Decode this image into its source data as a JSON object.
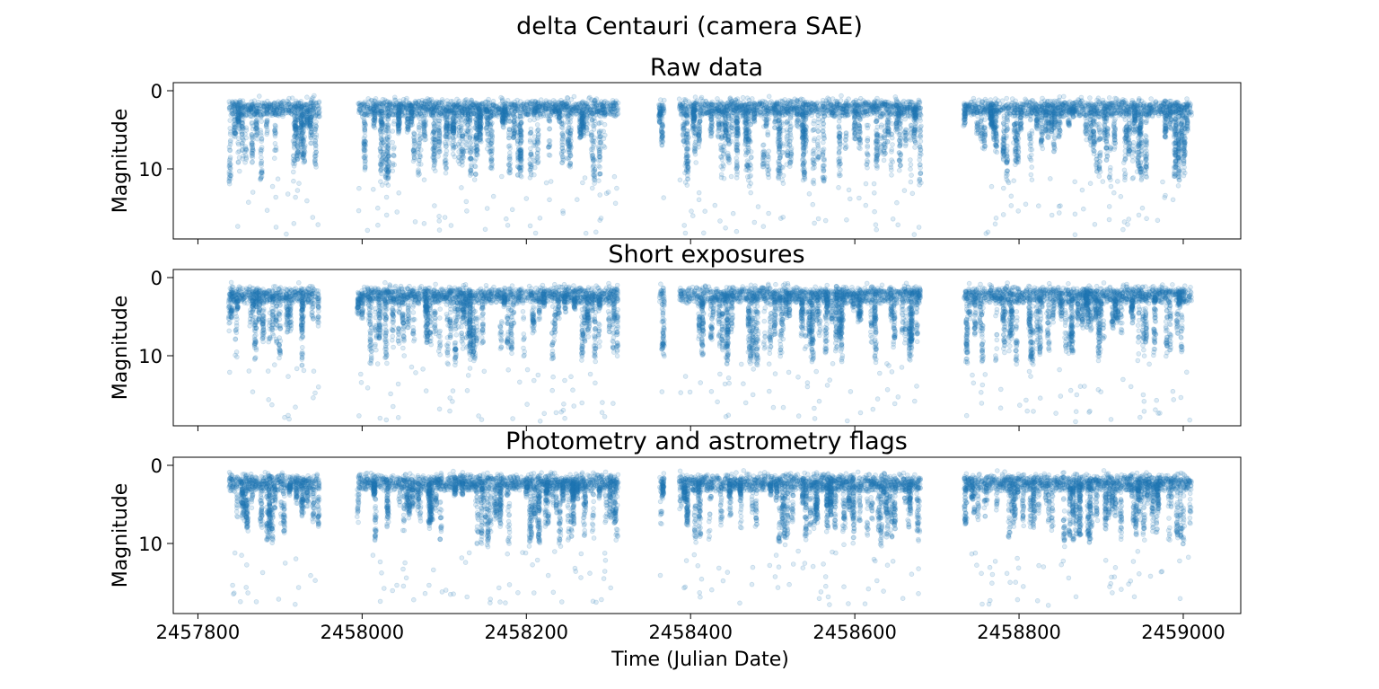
{
  "figure": {
    "title": "delta Centauri (camera SAE)",
    "xlabel": "Time (Julian Date)",
    "ylabel": "Magnitude",
    "x_tick_labels": [
      "2457800",
      "2458000",
      "2458200",
      "2458400",
      "2458600",
      "2458800",
      "2459000"
    ]
  },
  "chart_data": [
    {
      "type": "scatter",
      "title": "Raw data",
      "xlabel": "",
      "ylabel": "Magnitude",
      "xlim": [
        2457770,
        2459070
      ],
      "ylim": [
        19.0,
        -1.0
      ],
      "y_inverted": true,
      "x_ticks": [
        2457800,
        2458000,
        2458200,
        2458400,
        2458600,
        2458800,
        2459000
      ],
      "y_ticks": [
        0,
        10
      ],
      "color": "#1f77b4",
      "alpha": 0.15,
      "baseline_magnitude": 2.6,
      "observing_seasons": [
        [
          2457838,
          2457948
        ],
        [
          2457995,
          2458312
        ],
        [
          2458362,
          2458368
        ],
        [
          2458386,
          2458680
        ],
        [
          2458733,
          2459010
        ]
      ],
      "deep_dip_depth": 13,
      "max_outlier_magnitude": 18.5
    },
    {
      "type": "scatter",
      "title": "Short exposures",
      "xlabel": "",
      "ylabel": "Magnitude",
      "xlim": [
        2457770,
        2459070
      ],
      "ylim": [
        19.0,
        -1.0
      ],
      "y_inverted": true,
      "x_ticks": [
        2457800,
        2458000,
        2458200,
        2458400,
        2458600,
        2458800,
        2459000
      ],
      "y_ticks": [
        0,
        10
      ],
      "color": "#1f77b4",
      "alpha": 0.15,
      "baseline_magnitude": 2.6,
      "observing_seasons": [
        [
          2457838,
          2457948
        ],
        [
          2457995,
          2458312
        ],
        [
          2458362,
          2458368
        ],
        [
          2458386,
          2458680
        ],
        [
          2458733,
          2459010
        ]
      ],
      "deep_dip_depth": 12,
      "max_outlier_magnitude": 18.5
    },
    {
      "type": "scatter",
      "title": "Photometry and astrometry flags",
      "xlabel": "Time (Julian Date)",
      "ylabel": "Magnitude",
      "xlim": [
        2457770,
        2459070
      ],
      "ylim": [
        19.0,
        -1.0
      ],
      "y_inverted": true,
      "x_ticks": [
        2457800,
        2458000,
        2458200,
        2458400,
        2458600,
        2458800,
        2459000
      ],
      "y_ticks": [
        0,
        10
      ],
      "color": "#1f77b4",
      "alpha": 0.15,
      "baseline_magnitude": 2.6,
      "observing_seasons": [
        [
          2457838,
          2457948
        ],
        [
          2457995,
          2458312
        ],
        [
          2458362,
          2458368
        ],
        [
          2458386,
          2458680
        ],
        [
          2458733,
          2459010
        ]
      ],
      "deep_dip_depth": 11,
      "max_outlier_magnitude": 18.0
    }
  ]
}
